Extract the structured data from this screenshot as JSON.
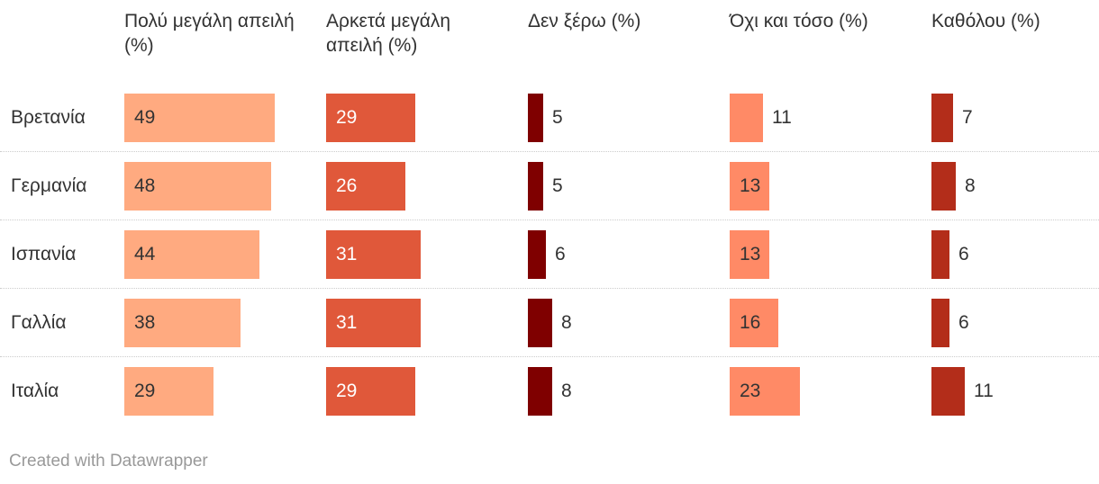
{
  "chart_data": {
    "type": "table",
    "columns": [
      {
        "label": "Πολύ μεγάλη απειλή (%)",
        "color": "#FFAA80"
      },
      {
        "label": "Αρκετά μεγάλη απειλή (%)",
        "color": "#E0583A"
      },
      {
        "label": "Δεν ξέρω (%)",
        "color": "#7F0000"
      },
      {
        "label": "Όχι και τόσο (%)",
        "color": "#FF8A66"
      },
      {
        "label": "Καθόλου (%)",
        "color": "#B32D1A"
      }
    ],
    "rows": [
      {
        "label": "Βρετανία",
        "values": [
          49,
          29,
          5,
          11,
          7
        ]
      },
      {
        "label": "Γερμανία",
        "values": [
          48,
          26,
          5,
          13,
          8
        ]
      },
      {
        "label": "Ισπανία",
        "values": [
          44,
          31,
          6,
          13,
          6
        ]
      },
      {
        "label": "Γαλλία",
        "values": [
          38,
          31,
          8,
          16,
          6
        ]
      },
      {
        "label": "Ιταλία",
        "values": [
          29,
          29,
          8,
          23,
          11
        ]
      }
    ]
  },
  "footer": "Created with Datawrapper"
}
